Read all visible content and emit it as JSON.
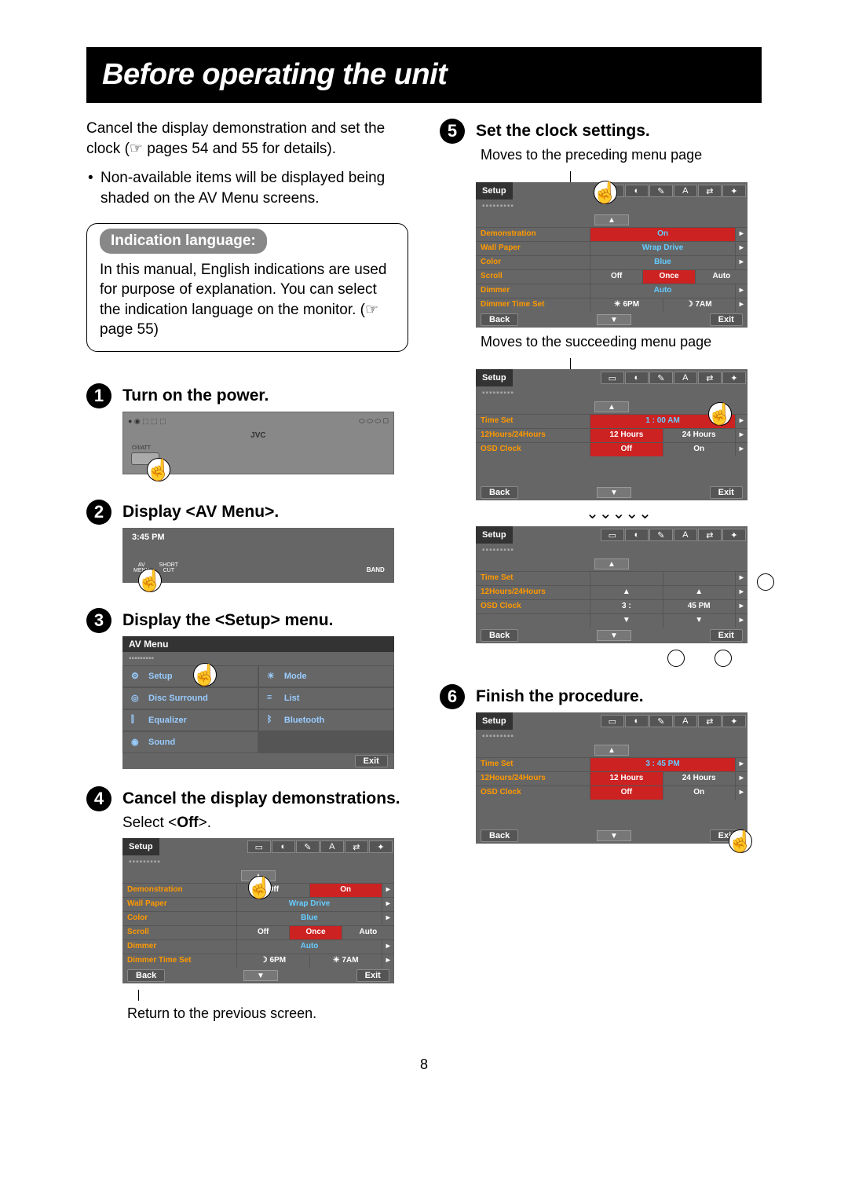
{
  "title": "Before operating the unit",
  "intro": "Cancel the display demonstration and set the clock (☞ pages 54 and 55 for details).",
  "bullet": "Non-available items will be displayed being shaded on the AV Menu screens.",
  "lang": {
    "label": "Indication language:",
    "text": "In this manual, English indications are used for purpose of explanation. You can select the indication language on the monitor. (☞ page 55)"
  },
  "steps": {
    "s1": {
      "num": "1",
      "title": "Turn on the power.",
      "device_label": "⏻/I/ATT",
      "brand": "JVC"
    },
    "s2": {
      "num": "2",
      "title": "Display <AV Menu>.",
      "clock": "3:45 PM",
      "btn1": "AV\nMENU",
      "btn2": "SHORT\nCUT",
      "band": "BAND"
    },
    "s3": {
      "num": "3",
      "title": "Display the <Setup> menu.",
      "hdr": "AV Menu",
      "cells": [
        "Setup",
        "Mode",
        "Disc Surround",
        "List",
        "Equalizer",
        "Bluetooth",
        "Sound"
      ],
      "exit": "Exit"
    },
    "s4": {
      "num": "4",
      "title": "Cancel the display demonstrations.",
      "sub": "Select <Off>.",
      "hdr": "Setup",
      "rows": [
        {
          "l": "Demonstration",
          "v": [
            "Off",
            "On"
          ],
          "sel": 1
        },
        {
          "l": "Wall Paper",
          "v": [
            "Wrap Drive"
          ]
        },
        {
          "l": "Color",
          "v": [
            "Blue"
          ]
        },
        {
          "l": "Scroll",
          "v": [
            "Off",
            "Once",
            "Auto"
          ],
          "sel": 1
        },
        {
          "l": "Dimmer",
          "v": [
            "Auto"
          ]
        },
        {
          "l": "Dimmer Time Set",
          "v": [
            "☽ 6PM",
            "☀ 7AM"
          ]
        }
      ],
      "back": "Back",
      "exit": "Exit",
      "caption": "Return to the previous screen."
    },
    "s5": {
      "num": "5",
      "title": "Set the clock settings.",
      "cap1": "Moves to the preceding menu page",
      "cap2": "Moves to the succeeding menu page",
      "p1": {
        "hdr": "Setup",
        "rows": [
          {
            "l": "Demonstration",
            "v": [
              "On"
            ],
            "sel": 0
          },
          {
            "l": "Wall Paper",
            "v": [
              "Wrap Drive"
            ]
          },
          {
            "l": "Color",
            "v": [
              "Blue"
            ]
          },
          {
            "l": "Scroll",
            "v": [
              "Off",
              "Once",
              "Auto"
            ],
            "sel": 1
          },
          {
            "l": "Dimmer",
            "v": [
              "Auto"
            ]
          },
          {
            "l": "Dimmer Time Set",
            "v": [
              "☀ 6PM",
              "☽ 7AM"
            ]
          }
        ],
        "back": "Back",
        "exit": "Exit"
      },
      "p2": {
        "hdr": "Setup",
        "rows": [
          {
            "l": "Time Set",
            "v": [
              "1 : 00 AM"
            ],
            "sel": 0
          },
          {
            "l": "12Hours/24Hours",
            "v": [
              "12 Hours",
              "24 Hours"
            ],
            "sel": 0
          },
          {
            "l": "OSD Clock",
            "v": [
              "Off",
              "On"
            ],
            "sel": 0
          }
        ],
        "back": "Back",
        "exit": "Exit"
      },
      "p3": {
        "hdr": "Setup",
        "rows": [
          {
            "l": "Time Set",
            "v": [
              "",
              ""
            ]
          },
          {
            "l": "12Hours/24Hours",
            "v": [
              "▲",
              "▲"
            ]
          },
          {
            "l": "OSD Clock",
            "v": [
              "3   :",
              "45 PM"
            ]
          },
          {
            "l": "",
            "v": [
              "▼",
              "▼"
            ]
          }
        ],
        "back": "Back",
        "exit": "Exit",
        "callouts": [
          "①",
          "②",
          "③"
        ]
      }
    },
    "s6": {
      "num": "6",
      "title": "Finish the procedure.",
      "hdr": "Setup",
      "rows": [
        {
          "l": "Time Set",
          "v": [
            "3 : 45 PM"
          ],
          "sel": 0
        },
        {
          "l": "12Hours/24Hours",
          "v": [
            "12 Hours",
            "24 Hours"
          ],
          "sel": 0
        },
        {
          "l": "OSD Clock",
          "v": [
            "Off",
            "On"
          ],
          "sel": 0
        }
      ],
      "back": "Back",
      "exit": "Exit"
    }
  },
  "page_num": "8"
}
